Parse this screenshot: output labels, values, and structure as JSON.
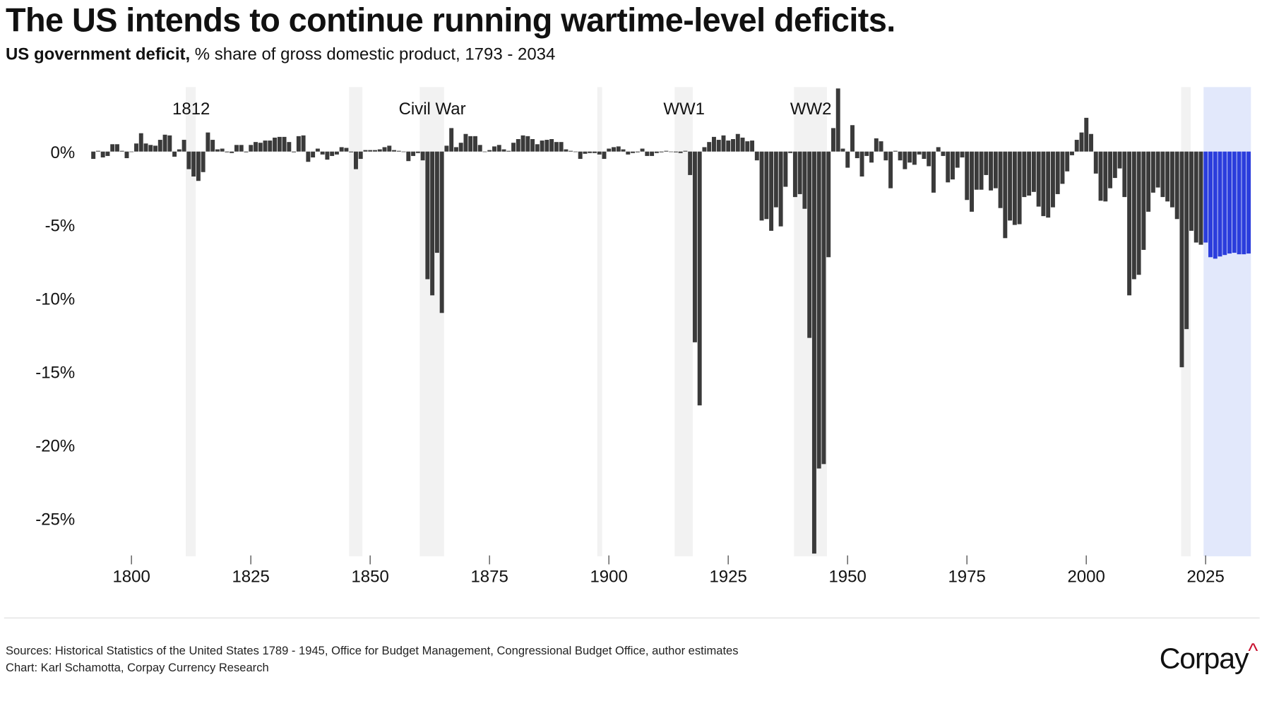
{
  "title": "The US intends to continue running wartime-level deficits.",
  "subtitle_bold": "US government deficit,",
  "subtitle_rest": " % share of gross domestic product, 1793 - 2034",
  "footer": {
    "sources": "Sources: Historical Statistics of the United States 1789 - 1945, Office for Budget Management, Congressional Budget Office, author estimates",
    "credit": "Chart: Karl Schamotta, Corpay Currency Research"
  },
  "logo": {
    "text": "Corpay",
    "mark": "^"
  },
  "colors": {
    "bar": "#3a3a3a",
    "projection_bar": "#2b3ddc",
    "war_band": "#f2f2f2",
    "projection_band": "#e2e8fb",
    "logo_accent": "#c8102e"
  },
  "chart_data": {
    "type": "bar",
    "title": "The US intends to continue running wartime-level deficits.",
    "ylabel": "",
    "xlabel": "",
    "unit": "% of GDP",
    "ylim": [
      -27.5,
      4.3
    ],
    "xlim": [
      1792,
      2035
    ],
    "grid": false,
    "x_ticks": [
      "1800",
      "1825",
      "1850",
      "1875",
      "1900",
      "1925",
      "1950",
      "1975",
      "2000",
      "2025"
    ],
    "y_ticks": [
      0,
      -5,
      -10,
      -15,
      -20,
      -25
    ],
    "y_tick_labels": [
      "0%",
      "-5%",
      "-10%",
      "-15%",
      "-20%",
      "-25%"
    ],
    "series": [
      {
        "start_year": 1792,
        "kind": "historical",
        "values": [
          -0.5,
          0.05,
          -0.4,
          -0.3,
          0.5,
          0.5,
          0.05,
          -0.45,
          0,
          0.55,
          1.25,
          0.55,
          0.45,
          0.4,
          0.8,
          1.15,
          1.1,
          -0.35,
          0.15,
          0.8,
          -1.2,
          -1.7,
          -2.0,
          -1.4,
          1.3,
          0.8,
          0.15,
          0.2,
          -0.05,
          -0.1,
          0.45,
          0.45,
          -0.05,
          0.45,
          0.65,
          0.6,
          0.75,
          0.75,
          0.95,
          1.0,
          1.0,
          0.65,
          -0.05,
          1.05,
          1.1,
          -0.7,
          -0.4,
          0.2,
          -0.2,
          -0.55,
          -0.3,
          -0.2,
          0.3,
          0.25,
          -0.05,
          -1.2,
          -0.5,
          0.1,
          0.1,
          0.1,
          0.15,
          0.3,
          0.4,
          0.1,
          0.05,
          0,
          -0.65,
          -0.3,
          -0.1,
          -0.6,
          -8.7,
          -9.8,
          -6.9,
          -11.0,
          0.4,
          1.6,
          0.3,
          0.6,
          1.2,
          1.05,
          1.05,
          0.45,
          0,
          0.1,
          0.35,
          0.45,
          0.15,
          0.05,
          0.6,
          0.85,
          1.1,
          1.05,
          0.85,
          0.5,
          0.75,
          0.8,
          0.85,
          0.65,
          0.65,
          0.15,
          0.05,
          0,
          -0.5,
          -0.15,
          -0.1,
          -0.1,
          -0.2,
          -0.5,
          0.2,
          0.3,
          0.35,
          0.15,
          -0.2,
          -0.1,
          -0.05,
          0.2,
          -0.3,
          -0.3,
          -0.1,
          -0.05,
          0.05,
          0,
          -0.05,
          -0.1,
          0.05,
          -1.6,
          -13.0,
          -17.3,
          0.3,
          0.65,
          1.0,
          0.8,
          1.1,
          0.75,
          0.85,
          1.2,
          0.95,
          0.7,
          0.75,
          -0.6,
          -4.7,
          -4.6,
          -5.4,
          -3.8,
          -5.1,
          -2.4,
          -0.1,
          -3.1,
          -2.9,
          -3.9,
          -12.7,
          -27.4,
          -21.6,
          -21.3,
          -7.2,
          1.6,
          4.3,
          0.2,
          -1.1,
          1.8,
          -0.45,
          -1.7,
          -0.3,
          -0.75,
          0.9,
          0.7,
          -0.6,
          -2.5,
          0.05,
          -0.6,
          -1.2,
          -0.75,
          -0.9,
          -0.2,
          -0.5,
          -1.0,
          -2.8,
          0.3,
          -0.3,
          -2.1,
          -1.9,
          -1.1,
          -0.4,
          -3.3,
          -4.1,
          -2.6,
          -2.6,
          -1.6,
          -2.65,
          -2.5,
          -3.85,
          -5.9,
          -4.7,
          -5.0,
          -4.95,
          -3.1,
          -3.0,
          -2.75,
          -3.75,
          -4.4,
          -4.5,
          -3.8,
          -2.9,
          -2.2,
          -1.35,
          -0.25,
          0.8,
          1.3,
          2.3,
          1.2,
          -1.5,
          -3.35,
          -3.4,
          -2.5,
          -1.8,
          -1.15,
          -3.1,
          -9.8,
          -8.7,
          -8.4,
          -6.7,
          -4.1,
          -2.8,
          -2.45,
          -3.1,
          -3.4,
          -3.8,
          -4.6,
          -14.7,
          -12.1,
          -5.4,
          -6.2,
          -6.35
        ]
      },
      {
        "start_year": 2025,
        "kind": "projection",
        "values": [
          -6.2,
          -7.2,
          -7.3,
          -7.15,
          -7.05,
          -6.95,
          -6.9,
          -7.0,
          -7.0,
          -6.95
        ]
      }
    ],
    "shaded_periods": [
      {
        "from": 1811.8,
        "to": 1813.9,
        "label": "1812"
      },
      {
        "from": 1846,
        "to": 1848.8,
        "label": ""
      },
      {
        "from": 1860.8,
        "to": 1865.9,
        "label": "Civil War"
      },
      {
        "from": 1898,
        "to": 1899,
        "label": ""
      },
      {
        "from": 1914.2,
        "to": 1918,
        "label": "WW1"
      },
      {
        "from": 1939.2,
        "to": 1946.1,
        "label": "WW2"
      },
      {
        "from": 2020.3,
        "to": 2022.3,
        "label": ""
      }
    ],
    "projection_period": {
      "from": 2025,
      "to": 2035
    }
  }
}
